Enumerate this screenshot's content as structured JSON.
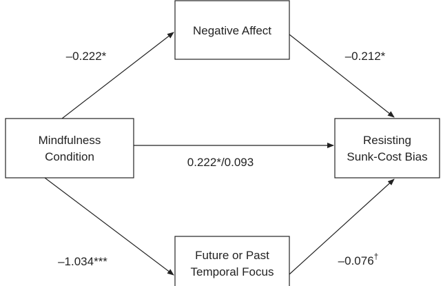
{
  "nodes": [
    {
      "lines": [
        "Negative Affect"
      ]
    },
    {
      "lines": [
        "Mindfulness",
        "Condition"
      ]
    },
    {
      "lines": [
        "Resisting",
        "Sunk-Cost Bias"
      ]
    },
    {
      "lines": [
        "Future or Past",
        "Temporal Focus"
      ]
    }
  ],
  "edges": [
    {
      "label": "–0.222*"
    },
    {
      "label": "–0.212*"
    },
    {
      "label": "0.222*/0.093"
    },
    {
      "label": "–1.034***"
    },
    {
      "label": "–0.076",
      "sup": "†"
    }
  ]
}
